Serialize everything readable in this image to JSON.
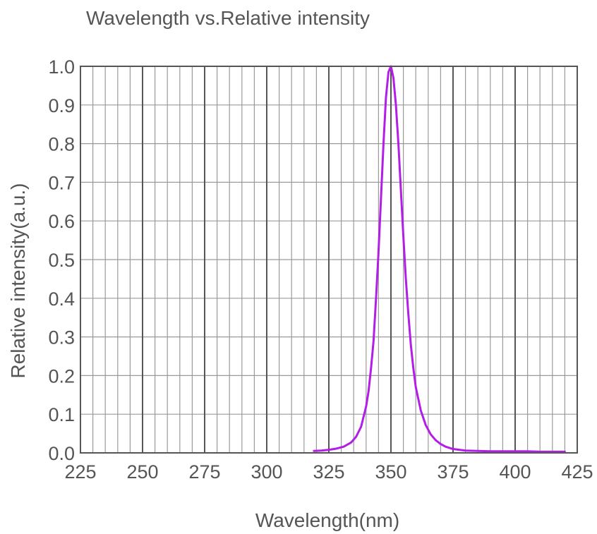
{
  "chart_data": {
    "type": "line",
    "title": "Wavelength vs.Relative intensity",
    "xlabel": "Wavelength(nm)",
    "ylabel": "Relative intensity(a.u.)",
    "xlim": [
      225,
      425
    ],
    "ylim": [
      0.0,
      1.0
    ],
    "x_ticks": [
      "225",
      "250",
      "275",
      "300",
      "325",
      "350",
      "375",
      "400",
      "425"
    ],
    "y_ticks": [
      "0.0",
      "0.1",
      "0.2",
      "0.3",
      "0.4",
      "0.5",
      "0.6",
      "0.7",
      "0.8",
      "0.9",
      "1.0"
    ],
    "grid": true,
    "colors": {
      "line": "#b21ee8",
      "grid_major": "#555555",
      "grid_minor": "#9a9a9a"
    },
    "series": [
      {
        "x": [
          319,
          322,
          325,
          328,
          331,
          334,
          336,
          338,
          340,
          341,
          342,
          343,
          344,
          345,
          346,
          347,
          348,
          349,
          350,
          351,
          352,
          353,
          354,
          355,
          356,
          357,
          358,
          359,
          360,
          362,
          364,
          366,
          368,
          370,
          372,
          375,
          380,
          385,
          390,
          395,
          400,
          405,
          410,
          415,
          420
        ],
        "y": [
          0.005,
          0.006,
          0.008,
          0.011,
          0.016,
          0.027,
          0.042,
          0.068,
          0.12,
          0.16,
          0.22,
          0.29,
          0.4,
          0.52,
          0.66,
          0.8,
          0.92,
          0.985,
          1.0,
          0.97,
          0.9,
          0.8,
          0.68,
          0.56,
          0.45,
          0.36,
          0.28,
          0.22,
          0.17,
          0.11,
          0.072,
          0.048,
          0.033,
          0.023,
          0.016,
          0.01,
          0.006,
          0.005,
          0.004,
          0.004,
          0.004,
          0.004,
          0.003,
          0.003,
          0.003
        ]
      }
    ]
  }
}
